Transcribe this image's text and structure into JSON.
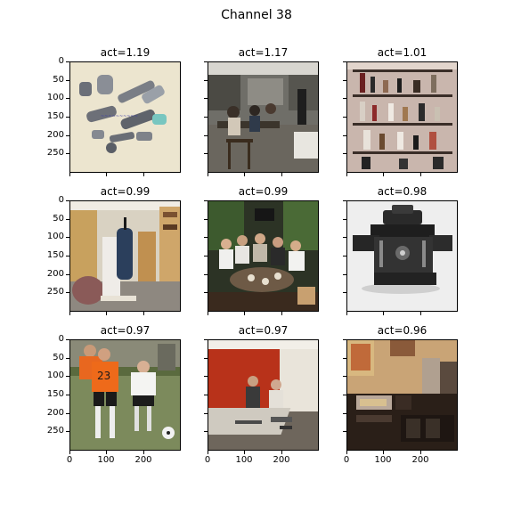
{
  "figure": {
    "title": "Channel 38"
  },
  "axes": {
    "yticks": [
      "0",
      "50",
      "100",
      "150",
      "200",
      "250"
    ],
    "xticks": [
      "0",
      "100",
      "200"
    ]
  },
  "panels": [
    {
      "title": "act=1.19",
      "content": "metal-machine-parts-icon"
    },
    {
      "title": "act=1.17",
      "content": "library-reading-room-icon"
    },
    {
      "title": "act=1.01",
      "content": "shelf-of-bottles-icon"
    },
    {
      "title": "act=0.99",
      "content": "shop-interior-icon"
    },
    {
      "title": "act=0.99",
      "content": "group-at-dinner-table-icon"
    },
    {
      "title": "act=0.98",
      "content": "mechanical-device-icon"
    },
    {
      "title": "act=0.97",
      "content": "youth-soccer-players-icon"
    },
    {
      "title": "act=0.97",
      "content": "workshop-room-icon"
    },
    {
      "title": "act=0.96",
      "content": "stereo-equipment-room-icon"
    }
  ]
}
